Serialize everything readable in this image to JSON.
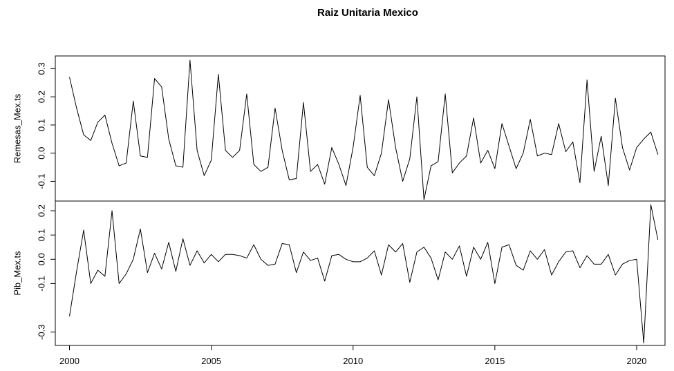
{
  "chart_data": {
    "type": "line",
    "title": "Raiz Unitaria Mexico",
    "x_start": 2000,
    "x_frequency": 4,
    "xlim": [
      1999.5,
      2021.0
    ],
    "x_ticks": [
      2000,
      2005,
      2010,
      2015,
      2020
    ],
    "x_tick_labels": [
      "2000",
      "2005",
      "2010",
      "2015",
      "2020"
    ],
    "panels": [
      {
        "ylabel": "Remesas_Mex.ts",
        "ylim": [
          -0.17,
          0.345
        ],
        "y_ticks": [
          -0.1,
          0.0,
          0.1,
          0.2,
          0.3
        ],
        "y_tick_labels": [
          "-0.1",
          "0.0",
          "0.1",
          "0.2",
          "0.3"
        ],
        "values": [
          0.27,
          0.16,
          0.065,
          0.045,
          0.11,
          0.135,
          0.035,
          -0.045,
          -0.035,
          0.185,
          -0.01,
          -0.015,
          0.265,
          0.235,
          0.05,
          -0.045,
          -0.05,
          0.33,
          0.01,
          -0.08,
          -0.025,
          0.28,
          0.01,
          -0.015,
          0.01,
          0.21,
          -0.04,
          -0.065,
          -0.05,
          0.16,
          0.01,
          -0.095,
          -0.09,
          0.18,
          -0.065,
          -0.04,
          -0.11,
          0.02,
          -0.04,
          -0.115,
          0.02,
          0.205,
          -0.05,
          -0.08,
          0.0,
          0.19,
          0.02,
          -0.1,
          -0.02,
          0.2,
          -0.165,
          -0.045,
          -0.03,
          0.21,
          -0.07,
          -0.035,
          -0.01,
          0.125,
          -0.035,
          0.01,
          -0.055,
          0.105,
          0.025,
          -0.055,
          0.0,
          0.12,
          -0.01,
          0.0,
          -0.005,
          0.105,
          0.005,
          0.04,
          -0.105,
          0.26,
          -0.065,
          0.06,
          -0.115,
          0.195,
          0.02,
          -0.06,
          0.02,
          0.05,
          0.075,
          -0.005
        ]
      },
      {
        "ylabel": "Pib_Mex.ts",
        "ylim": [
          -0.355,
          0.24
        ],
        "y_ticks": [
          -0.3,
          -0.1,
          0.0,
          0.1,
          0.2
        ],
        "y_tick_labels": [
          "-0.3",
          "-0.1",
          "0.0",
          "0.1",
          "0.2"
        ],
        "values": [
          -0.235,
          -0.05,
          0.12,
          -0.1,
          -0.045,
          -0.07,
          0.2,
          -0.1,
          -0.06,
          0.0,
          0.125,
          -0.055,
          0.025,
          -0.04,
          0.07,
          -0.05,
          0.085,
          -0.025,
          0.035,
          -0.015,
          0.02,
          -0.01,
          0.02,
          0.02,
          0.015,
          0.005,
          0.06,
          0.0,
          -0.025,
          -0.02,
          0.065,
          0.06,
          -0.055,
          0.03,
          -0.005,
          0.005,
          -0.09,
          0.015,
          0.02,
          0.0,
          -0.01,
          -0.01,
          0.005,
          0.035,
          -0.065,
          0.06,
          0.03,
          0.065,
          -0.095,
          0.03,
          0.05,
          0.005,
          -0.085,
          0.03,
          0.0,
          0.055,
          -0.07,
          0.05,
          0.0,
          0.07,
          -0.1,
          0.05,
          0.06,
          -0.025,
          -0.045,
          0.035,
          0.0,
          0.04,
          -0.065,
          -0.01,
          0.03,
          0.035,
          -0.035,
          0.015,
          -0.02,
          -0.02,
          0.02,
          -0.065,
          -0.02,
          -0.005,
          0.0,
          -0.345,
          0.225,
          0.08
        ]
      }
    ]
  }
}
